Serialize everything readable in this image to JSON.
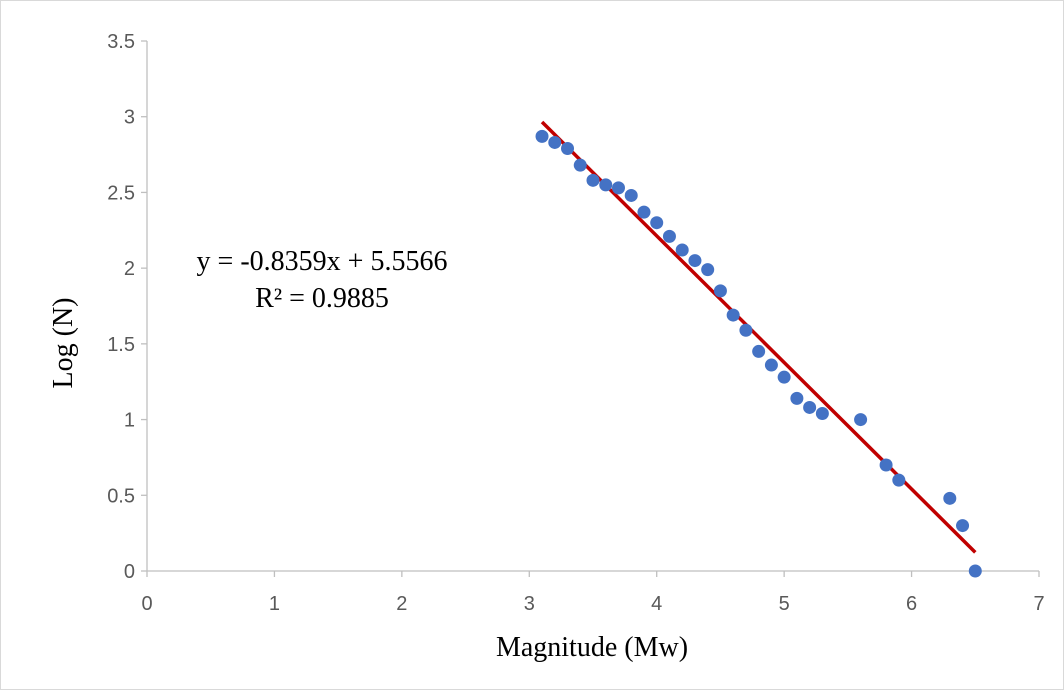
{
  "chart_data": {
    "type": "scatter",
    "xlabel": "Magnitude (Mw)",
    "ylabel": "Log (N)",
    "xlim": [
      0,
      7
    ],
    "ylim": [
      0,
      3.5
    ],
    "xticks": [
      "0",
      "1",
      "2",
      "3",
      "4",
      "5",
      "6",
      "7"
    ],
    "yticks": [
      "0",
      "0.5",
      "1",
      "1.5",
      "2",
      "2.5",
      "3",
      "3.5"
    ],
    "grid": false,
    "points": [
      [
        3.1,
        2.87
      ],
      [
        3.2,
        2.83
      ],
      [
        3.3,
        2.79
      ],
      [
        3.4,
        2.68
      ],
      [
        3.5,
        2.58
      ],
      [
        3.6,
        2.55
      ],
      [
        3.7,
        2.53
      ],
      [
        3.8,
        2.48
      ],
      [
        3.9,
        2.37
      ],
      [
        4.0,
        2.3
      ],
      [
        4.1,
        2.21
      ],
      [
        4.2,
        2.12
      ],
      [
        4.3,
        2.05
      ],
      [
        4.4,
        1.99
      ],
      [
        4.5,
        1.85
      ],
      [
        4.6,
        1.69
      ],
      [
        4.7,
        1.59
      ],
      [
        4.8,
        1.45
      ],
      [
        4.9,
        1.36
      ],
      [
        5.0,
        1.28
      ],
      [
        5.1,
        1.14
      ],
      [
        5.2,
        1.08
      ],
      [
        5.3,
        1.04
      ],
      [
        5.6,
        1.0
      ],
      [
        5.8,
        0.7
      ],
      [
        5.9,
        0.6
      ],
      [
        6.3,
        0.48
      ],
      [
        6.4,
        0.3
      ],
      [
        6.5,
        0.0
      ]
    ],
    "trendline": {
      "slope": -0.8359,
      "intercept": 5.5566,
      "x_range": [
        3.1,
        6.5
      ]
    },
    "equation": "y = -0.8359x + 5.5566",
    "r2": "R² = 0.9885",
    "colors": {
      "points": "#4472c4",
      "trendline": "#c00000",
      "axis": "#bfbfbf"
    }
  }
}
